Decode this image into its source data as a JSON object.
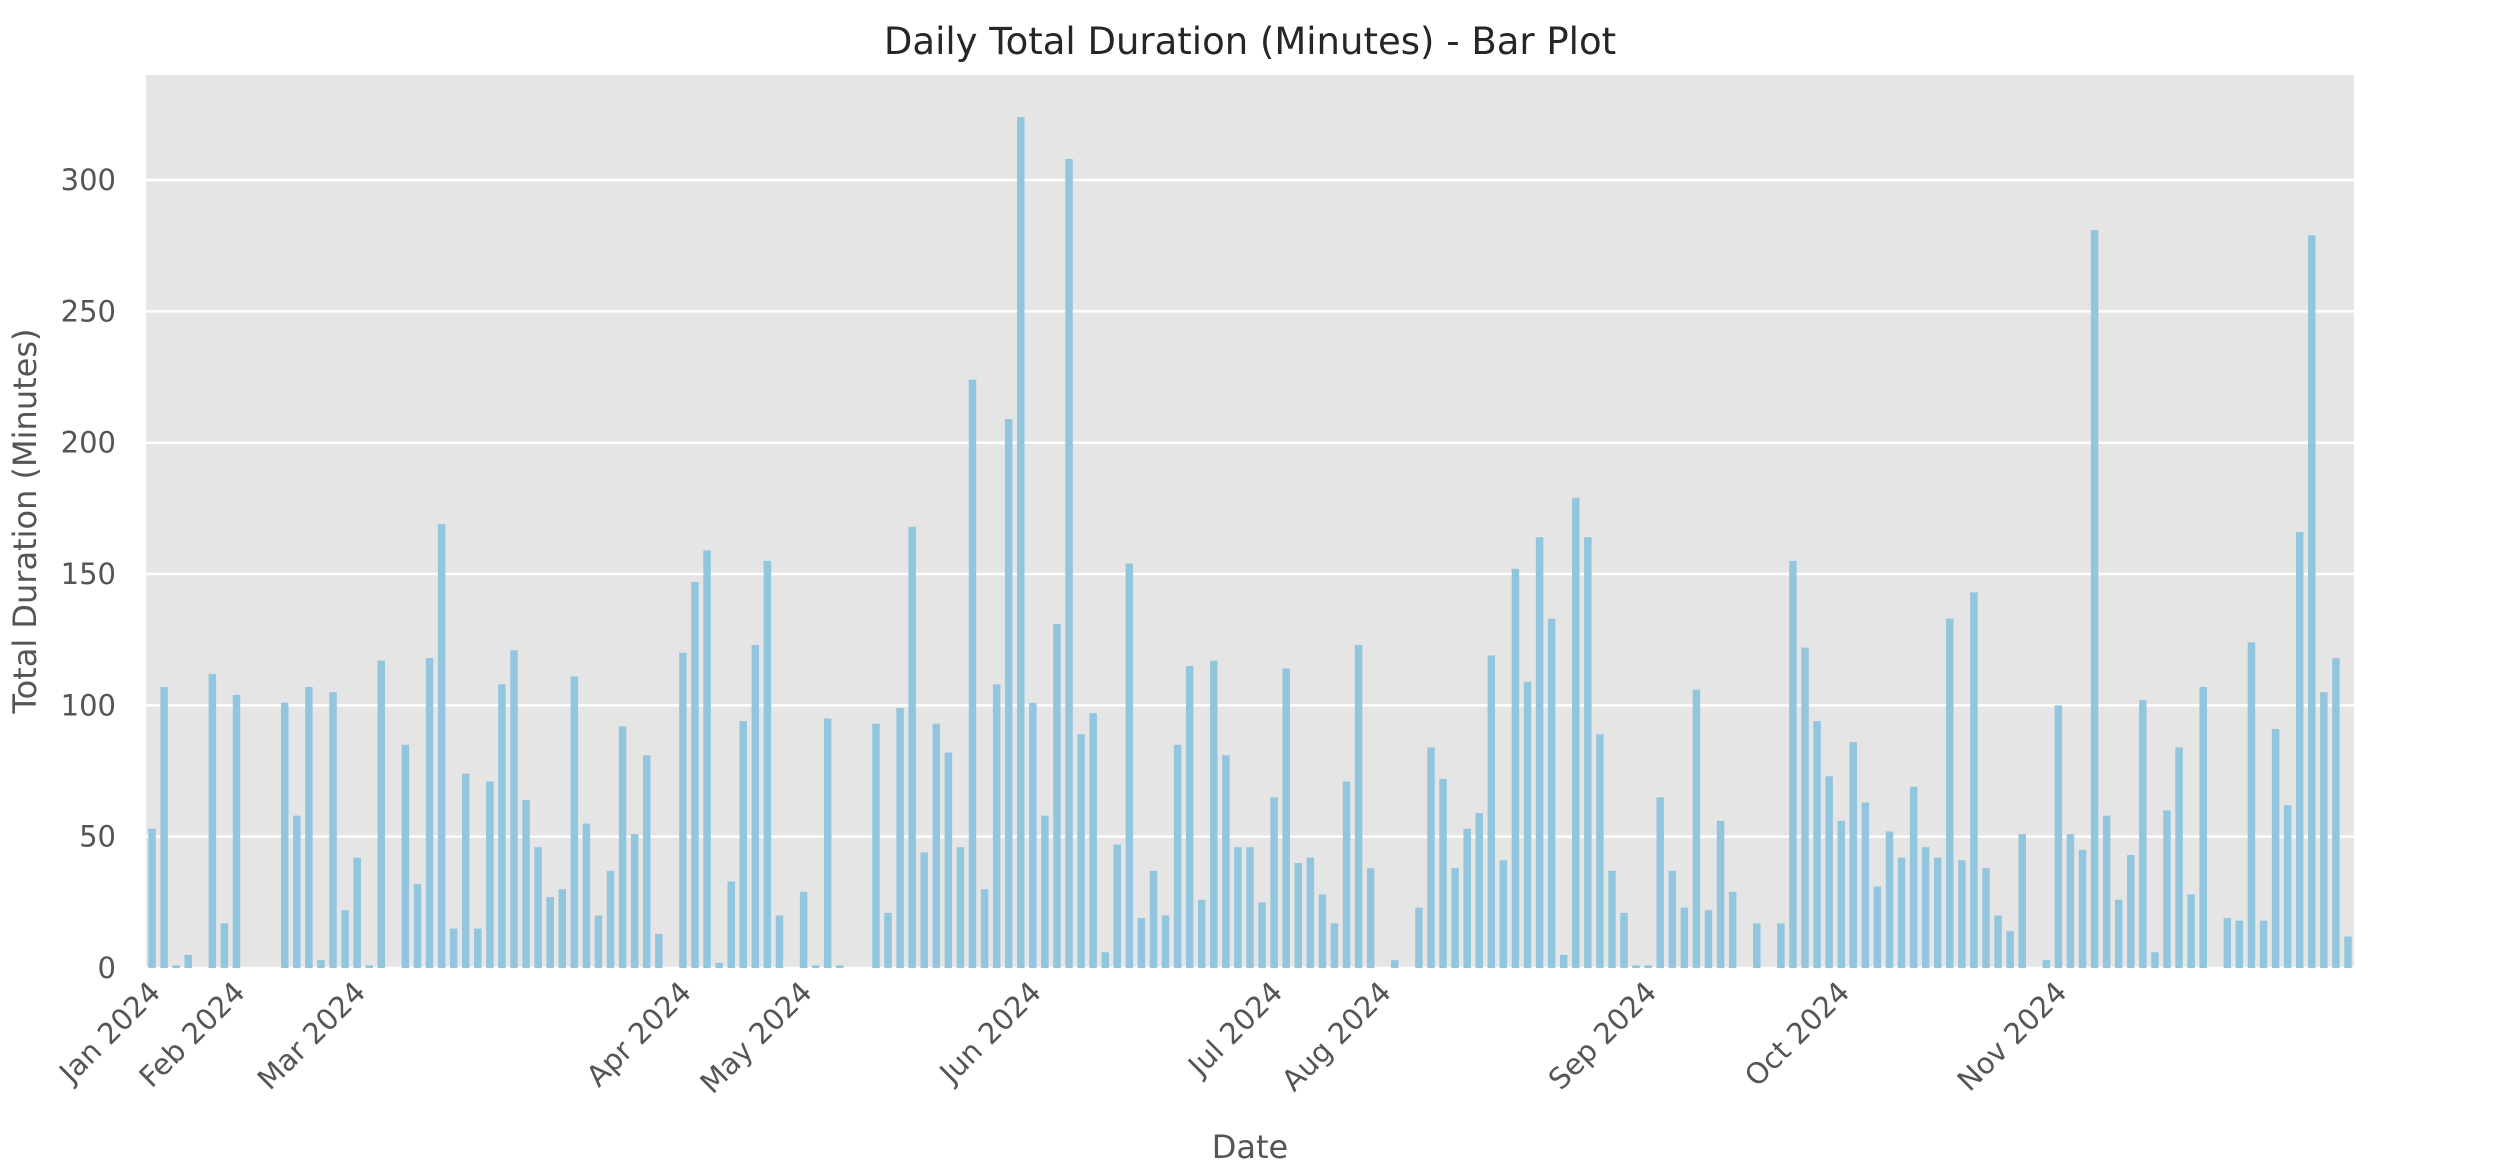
{
  "chart_data": {
    "type": "bar",
    "title": "Daily Total Duration (Minutes) - Bar Plot",
    "xlabel": "Date",
    "ylabel": "Total Duration (Minutes)",
    "ylim": [
      0,
      340
    ],
    "y_ticks": [
      0,
      50,
      100,
      150,
      200,
      250,
      300
    ],
    "grid": true,
    "background": "#e5e5e5",
    "bar_color": "#92c5de",
    "x_tick_labels": [
      {
        "label": "Jan 2024",
        "index": 0
      },
      {
        "label": "Feb 2024",
        "index": 7
      },
      {
        "label": "Mar 2024",
        "index": 17
      },
      {
        "label": "Apr 2024",
        "index": 44
      },
      {
        "label": "May 2024",
        "index": 54
      },
      {
        "label": "Jun 2024",
        "index": 73
      },
      {
        "label": "Jul 2024",
        "index": 93
      },
      {
        "label": "Aug 2024",
        "index": 102
      },
      {
        "label": "Sep 2024",
        "index": 124
      },
      {
        "label": "Oct 2024",
        "index": 140
      },
      {
        "label": "Nov 2024",
        "index": 158
      }
    ],
    "values": [
      53,
      107,
      1,
      5,
      0,
      112,
      17,
      104,
      0,
      0,
      0,
      101,
      58,
      107,
      3,
      105,
      22,
      42,
      1,
      117,
      0,
      85,
      32,
      118,
      169,
      15,
      74,
      15,
      71,
      108,
      121,
      64,
      46,
      27,
      30,
      111,
      55,
      20,
      37,
      92,
      51,
      81,
      13,
      0,
      120,
      147,
      159,
      2,
      33,
      94,
      123,
      155,
      20,
      0,
      29,
      1,
      95,
      1,
      0,
      0,
      93,
      21,
      99,
      168,
      44,
      93,
      82,
      46,
      224,
      30,
      108,
      209,
      324,
      101,
      58,
      131,
      308,
      89,
      97,
      6,
      47,
      154,
      19,
      37,
      20,
      85,
      115,
      26,
      117,
      81,
      46,
      46,
      25,
      65,
      114,
      40,
      42,
      28,
      17,
      71,
      123,
      38,
      0,
      3,
      0,
      23,
      84,
      72,
      38,
      53,
      59,
      119,
      41,
      152,
      109,
      164,
      133,
      5,
      179,
      164,
      89,
      37,
      21,
      1,
      1,
      65,
      37,
      23,
      106,
      22,
      56,
      29,
      0,
      17,
      0,
      17,
      155,
      122,
      94,
      73,
      56,
      86,
      63,
      31,
      52,
      42,
      69,
      46,
      42,
      133,
      41,
      143,
      38,
      20,
      14,
      51,
      0,
      3,
      100,
      51,
      45,
      281,
      58,
      26,
      43,
      102,
      6,
      60,
      84,
      28,
      107,
      0,
      19,
      18,
      124,
      18,
      91,
      62,
      166,
      279,
      105,
      118,
      12
    ]
  }
}
